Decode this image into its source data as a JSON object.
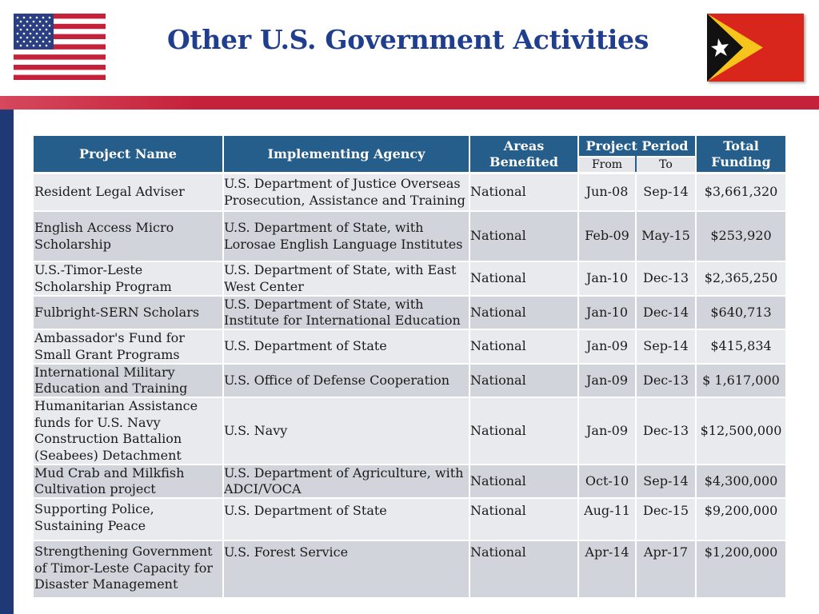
{
  "title": "Other U.S. Government Activities",
  "flags": [
    "us-flag",
    "timor-leste-flag"
  ],
  "colors": {
    "title": "#1f3e8e",
    "header_bg": "#255d8b",
    "accent_red": "#c4213a",
    "accent_blue": "#1f3876"
  },
  "table": {
    "headers": {
      "project_name": "Project Name",
      "agency": "Implementing Agency",
      "areas": "Areas Benefited",
      "period": "Project Period",
      "from": "From",
      "to": "To",
      "funding": "Total Funding"
    },
    "rows": [
      {
        "name": "Resident Legal Adviser",
        "agency": "U.S. Department of Justice Overseas Prosecution, Assistance and Training",
        "area": "National",
        "from": "Jun-08",
        "to": "Sep-14",
        "funding": "$3,661,320"
      },
      {
        "name": "English Access Micro Scholarship",
        "agency": "U.S. Department of State, with Lorosae English Language Institutes",
        "area": "National",
        "from": "Feb-09",
        "to": "May-15",
        "funding": "$253,920"
      },
      {
        "name": "U.S.-Timor-Leste Scholarship Program",
        "agency": "U.S. Department of State, with East West Center",
        "area": "National",
        "from": "Jan-10",
        "to": "Dec-13",
        "funding": "$2,365,250"
      },
      {
        "name": "Fulbright-SERN Scholars",
        "agency": "U.S. Department of State, with Institute for International Education",
        "area": "National",
        "from": "Jan-10",
        "to": "Dec-14",
        "funding": "$640,713"
      },
      {
        "name": "Ambassador's Fund for Small Grant Programs",
        "agency": "U.S. Department of State",
        "area": "National",
        "from": "Jan-09",
        "to": "Sep-14",
        "funding": "$415,834"
      },
      {
        "name": "International Military Education and Training",
        "agency": "U.S. Office of Defense Cooperation",
        "area": "National",
        "from": "Jan-09",
        "to": "Dec-13",
        "funding": "$ 1,617,000"
      },
      {
        "name": "Humanitarian Assistance funds for U.S. Navy Construction Battalion  (Seabees) Detachment",
        "agency": "U.S. Navy",
        "area": "National",
        "from": "Jan-09",
        "to": "Dec-13",
        "funding": "$12,500,000"
      },
      {
        "name": "Mud Crab and Milkfish Cultivation project",
        "agency": "U.S. Department of Agriculture, with ADCI/VOCA",
        "area": "National",
        "from": "Oct-10",
        "to": "Sep-14",
        "funding": "$4,300,000"
      },
      {
        "name": "Supporting Police, Sustaining Peace",
        "agency": "U.S. Department of State",
        "area": "National",
        "from": "Aug-11",
        "to": "Dec-15",
        "funding": "$9,200,000"
      },
      {
        "name": "Strengthening Government of Timor-Leste Capacity for Disaster Management",
        "agency": "U.S. Forest Service",
        "area": "National",
        "from": "Apr-14",
        "to": "Apr-17",
        "funding": "$1,200,000"
      }
    ]
  }
}
